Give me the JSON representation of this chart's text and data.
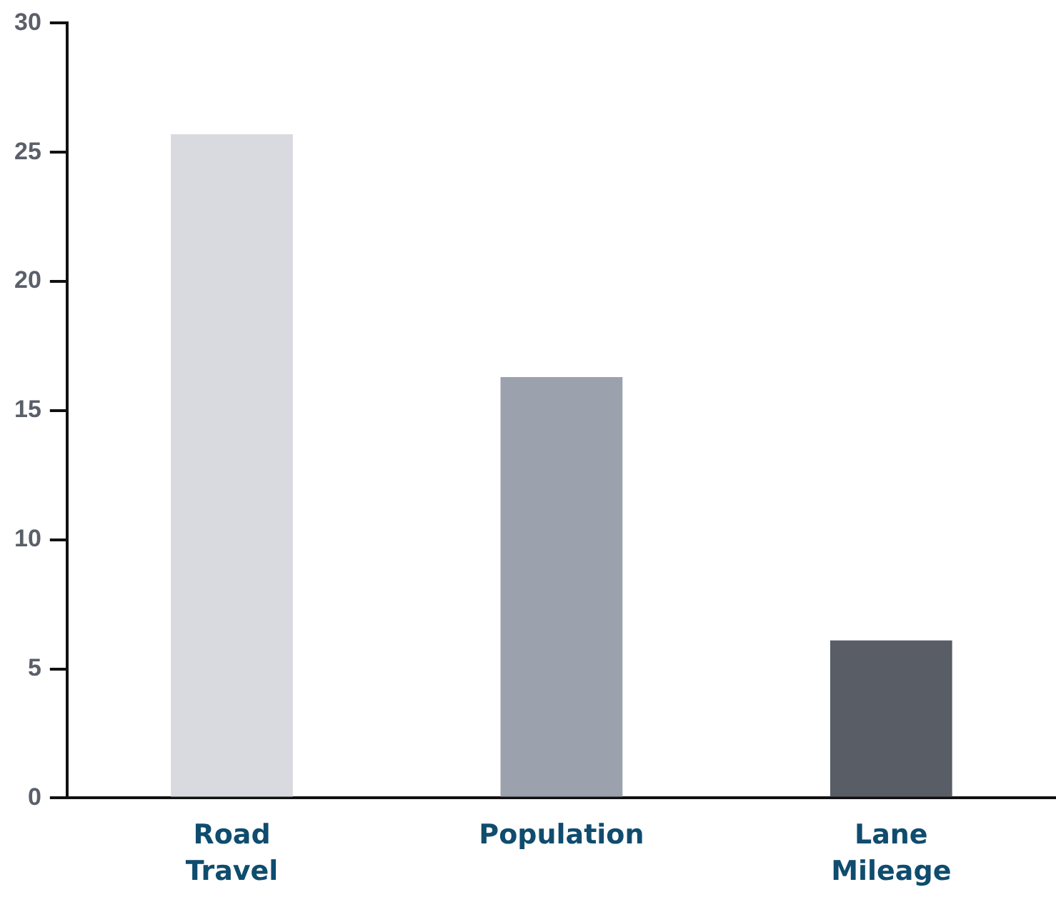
{
  "chart_data": {
    "type": "bar",
    "categories": [
      "Road Travel",
      "Population",
      "Lane Mileage"
    ],
    "values": [
      25.7,
      16.3,
      6.1
    ],
    "colors": [
      "#d9dadf",
      "#9ba1ad",
      "#595d66"
    ],
    "ylim": [
      0,
      30
    ],
    "yticks": [
      0,
      5,
      10,
      15,
      20,
      25,
      30
    ],
    "grid": false,
    "legend": false
  }
}
